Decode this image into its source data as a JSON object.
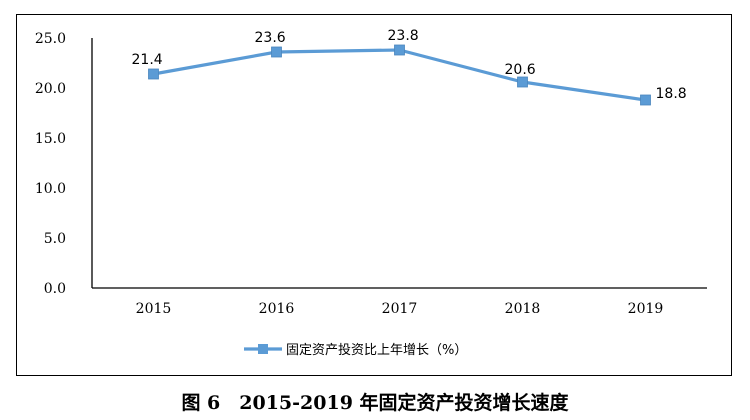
{
  "chart_data": {
    "type": "line",
    "categories": [
      "2015",
      "2016",
      "2017",
      "2018",
      "2019"
    ],
    "series": [
      {
        "name": "固定资产投资比上年增长（%）",
        "values": [
          21.4,
          23.6,
          23.8,
          20.6,
          18.8
        ],
        "data_labels": [
          "21.4",
          "23.6",
          "23.8",
          "20.6",
          "18.8"
        ],
        "color": "#5b9bd5",
        "marker": "square"
      }
    ],
    "ylim": [
      0,
      25
    ],
    "yticks": [
      0,
      5,
      10,
      15,
      20,
      25
    ],
    "ytick_labels": [
      "0.0",
      "5.0",
      "10.0",
      "15.0",
      "20.0",
      "25.0"
    ],
    "grid": false,
    "legend_position": "bottom"
  },
  "caption": "图 6　2015-2019 年固定资产投资增长速度"
}
